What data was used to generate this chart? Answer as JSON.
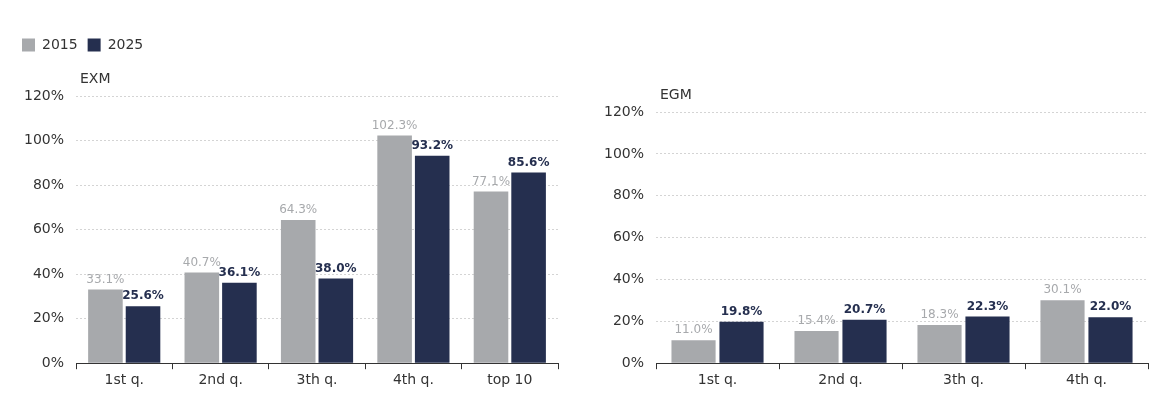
{
  "chart_data": [
    {
      "type": "bar",
      "title": "EXM",
      "categories": [
        "1st q.",
        "2nd q.",
        "3th q.",
        "4th q.",
        "top 10"
      ],
      "series": [
        {
          "name": "2015",
          "color": "#a7a9ac",
          "values": [
            33.1,
            40.7,
            64.3,
            102.3,
            77.1
          ],
          "value_labels": [
            "33.1%",
            "40.7%",
            "64.3%",
            "102.3%",
            "77.1%"
          ]
        },
        {
          "name": "2025",
          "color": "#252f4f",
          "values": [
            25.6,
            36.1,
            38.0,
            93.2,
            85.6
          ],
          "value_labels": [
            "25.6%",
            "36.1%",
            "38.0%",
            "93.2%",
            "85.6%"
          ]
        }
      ],
      "ylim": [
        0,
        120
      ],
      "yticks": [
        {
          "value": 0,
          "label": "0%"
        },
        {
          "value": 20,
          "label": "20%"
        },
        {
          "value": 40,
          "label": "40%"
        },
        {
          "value": 60,
          "label": "60%"
        },
        {
          "value": 80,
          "label": "80%"
        },
        {
          "value": 100,
          "label": "100%"
        },
        {
          "value": 120,
          "label": "120%"
        }
      ],
      "grid": "y",
      "legend": "top left"
    },
    {
      "type": "bar",
      "title": "EGM",
      "categories": [
        "1st q.",
        "2nd q.",
        "3th q.",
        "4th q."
      ],
      "series": [
        {
          "color": "#a7a9ac",
          "values": [
            11.0,
            15.4,
            18.3,
            30.1
          ],
          "value_labels": [
            "11.0%",
            "15.4%",
            "18.3%",
            "30.1%"
          ]
        },
        {
          "color": "#252f4f",
          "values": [
            19.8,
            20.7,
            22.3,
            22.0
          ],
          "value_labels": [
            "19.8%",
            "20.7%",
            "22.3%",
            "22.0%"
          ]
        }
      ],
      "ylim": [
        0,
        120
      ],
      "yticks": [
        {
          "value": 0,
          "label": "0%"
        },
        {
          "value": 20,
          "label": "20%"
        },
        {
          "value": 40,
          "label": "40%"
        },
        {
          "value": 60,
          "label": "60%"
        },
        {
          "value": 80,
          "label": "80%"
        },
        {
          "value": 100,
          "label": "100%"
        },
        {
          "value": 120,
          "label": "120%"
        }
      ],
      "grid": "y",
      "legend": false
    }
  ]
}
